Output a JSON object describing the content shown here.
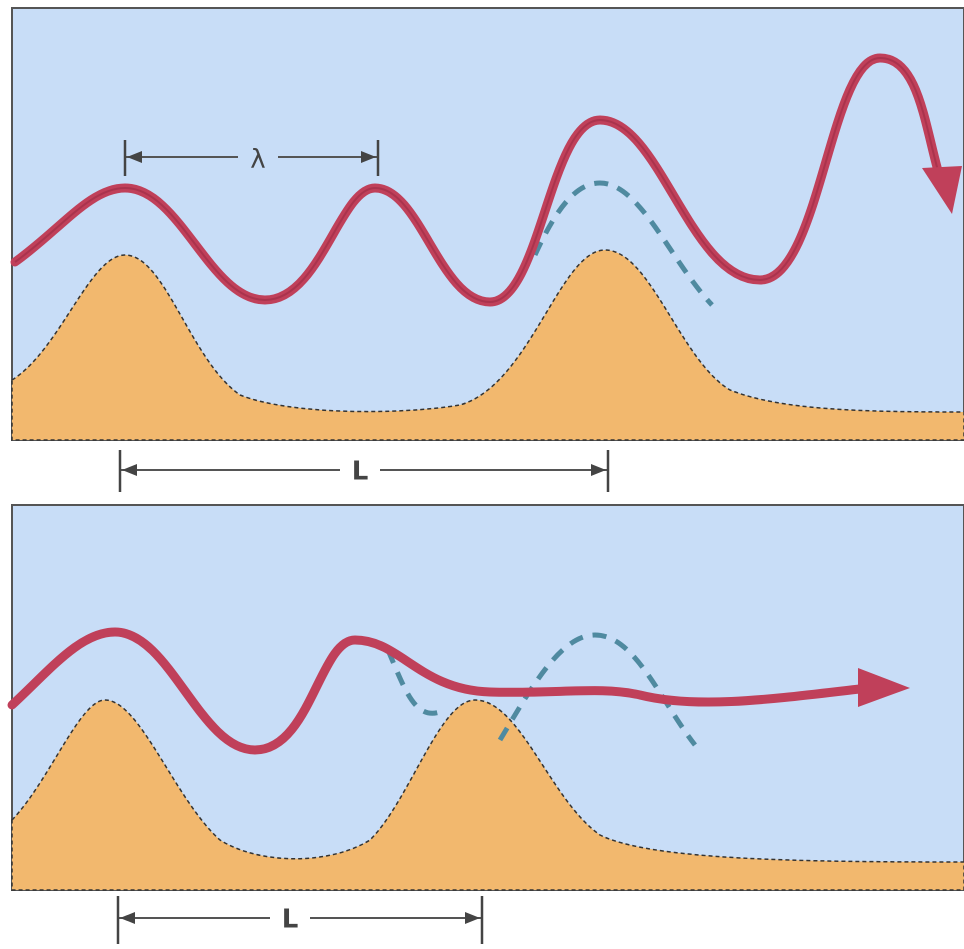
{
  "panels": [
    {
      "wavelength_label": "λ",
      "spacing_label": "L"
    },
    {
      "spacing_label": "L"
    }
  ]
}
